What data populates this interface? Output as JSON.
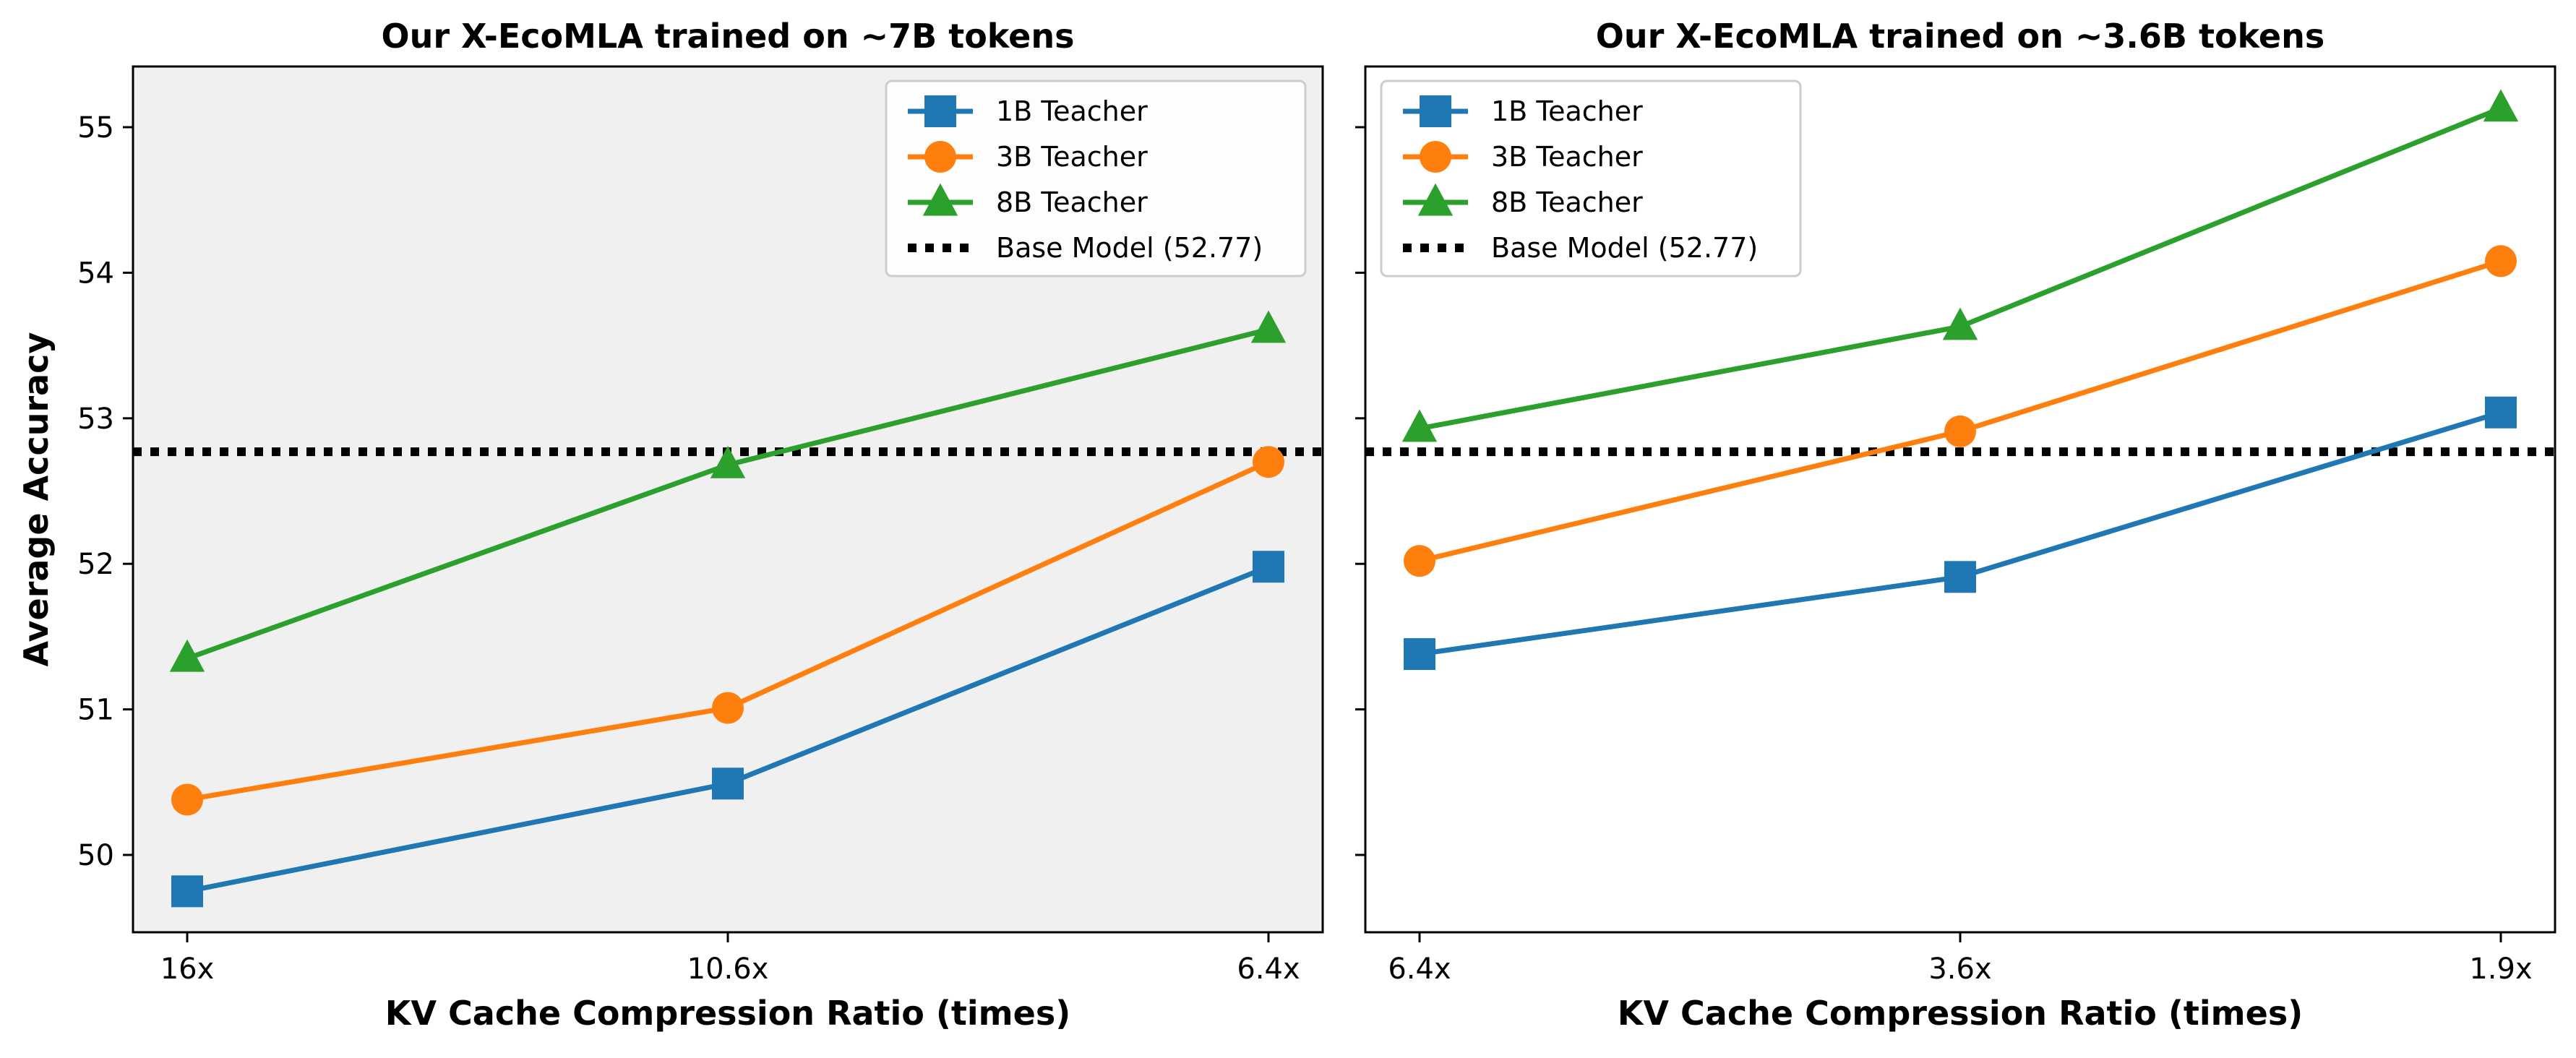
{
  "chart_data": [
    {
      "type": "line",
      "title": "Our X-EcoMLA trained on ~7B tokens",
      "xlabel": "KV Cache Compression Ratio (times)",
      "ylabel": "Average Accuracy",
      "categories": [
        "16x",
        "10.6x",
        "6.4x"
      ],
      "ylim": [
        49.5,
        55.4
      ],
      "yticks": [
        "50",
        "51",
        "52",
        "53",
        "54",
        "55"
      ],
      "background": "#f0f0f0",
      "legend_position": "upper-right",
      "series": [
        {
          "name": "1B Teacher",
          "values": [
            49.75,
            50.49,
            51.98
          ],
          "color": "#1f77b4",
          "marker": "square"
        },
        {
          "name": "3B Teacher",
          "values": [
            50.38,
            51.01,
            52.7
          ],
          "color": "#ff7f0e",
          "marker": "circle"
        },
        {
          "name": "8B Teacher",
          "values": [
            51.35,
            52.68,
            53.61
          ],
          "color": "#2ca02c",
          "marker": "triangle"
        }
      ],
      "baseline": {
        "name": "Base Model (52.77)",
        "value": 52.77,
        "color": "#000000"
      }
    },
    {
      "type": "line",
      "title": "Our X-EcoMLA trained on ~3.6B tokens",
      "xlabel": "KV Cache Compression Ratio (times)",
      "ylabel": "",
      "categories": [
        "6.4x",
        "3.6x",
        "1.9x"
      ],
      "ylim": [
        49.5,
        55.4
      ],
      "yticks": [
        "50",
        "51",
        "52",
        "53",
        "54",
        "55"
      ],
      "background": "#ffffff",
      "legend_position": "upper-left",
      "series": [
        {
          "name": "1B Teacher",
          "values": [
            51.38,
            51.91,
            53.04
          ],
          "color": "#1f77b4",
          "marker": "square"
        },
        {
          "name": "3B Teacher",
          "values": [
            52.02,
            52.91,
            54.08
          ],
          "color": "#ff7f0e",
          "marker": "circle"
        },
        {
          "name": "8B Teacher",
          "values": [
            52.93,
            53.63,
            55.13
          ],
          "color": "#2ca02c",
          "marker": "triangle"
        }
      ],
      "baseline": {
        "name": "Base Model (52.77)",
        "value": 52.77,
        "color": "#000000"
      }
    }
  ]
}
